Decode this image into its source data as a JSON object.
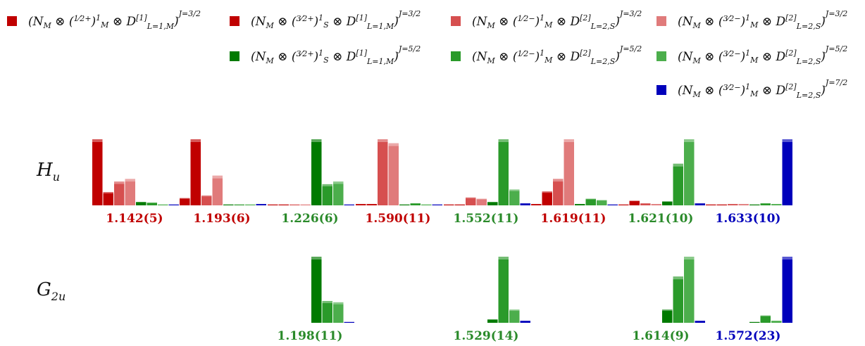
{
  "chart_data": {
    "type": "bar",
    "legend_placement": "top",
    "series": [
      {
        "key": "s1",
        "name": "(N_M ⊗ (1/2⁺)¹_M ⊗ D^[1]_{L=1,M})^{J=3/2}",
        "color": "#c00000"
      },
      {
        "key": "s2",
        "name": "(N_M ⊗ (3/2⁺)¹_S ⊗ D^[1]_{L=1,M})^{J=3/2}",
        "color": "#c00000"
      },
      {
        "key": "s3",
        "name": "(N_M ⊗ (1/2⁻)¹_M ⊗ D^[2]_{L=2,S})^{J=3/2}",
        "color": "#d64f4f"
      },
      {
        "key": "s4",
        "name": "(N_M ⊗ (3/2⁻)¹_M ⊗ D^[2]_{L=2,S})^{J=3/2}",
        "color": "#e07b7b"
      },
      {
        "key": "s5",
        "name": "(N_M ⊗ (3/2⁺)¹_S ⊗ D^[1]_{L=1,M})^{J=5/2}",
        "color": "#007a00"
      },
      {
        "key": "s6",
        "name": "(N_M ⊗ (1/2⁻)¹_M ⊗ D^[2]_{L=2,S})^{J=5/2}",
        "color": "#2a9a2a"
      },
      {
        "key": "s7",
        "name": "(N_M ⊗ (3/2⁻)¹_M ⊗ D^[2]_{L=2,S})^{J=5/2}",
        "color": "#4cae4c"
      },
      {
        "key": "s8",
        "name": "(N_M ⊗ (3/2⁻)¹_M ⊗ D^[2]_{L=2,S})^{J=7/2}",
        "color": "#0000bb"
      }
    ],
    "rows": [
      {
        "label_main": "H",
        "label_sub": "u",
        "groups": [
          {
            "mass": "1.142(5)",
            "mass_color": "#c00000",
            "values": [
              1.0,
              0.2,
              0.36,
              0.4,
              0.05,
              0.04,
              0.01,
              0.01
            ]
          },
          {
            "mass": "1.193(6)",
            "mass_color": "#c00000",
            "values": [
              0.11,
              1.0,
              0.15,
              0.45,
              0.01,
              0.01,
              0.01,
              0.02
            ]
          },
          {
            "mass": "1.226(6)",
            "mass_color": "#2a8a2a",
            "values": [
              0.01,
              0.01,
              0.01,
              0.01,
              1.0,
              0.32,
              0.36,
              0.01
            ]
          },
          {
            "mass": "1.590(11)",
            "mass_color": "#c00000",
            "values": [
              0.02,
              0.02,
              1.0,
              0.94,
              0.01,
              0.03,
              0.01,
              0.01
            ]
          },
          {
            "mass": "1.552(11)",
            "mass_color": "#2a8a2a",
            "values": [
              0.01,
              0.01,
              0.12,
              0.1,
              0.05,
              1.0,
              0.24,
              0.03
            ]
          },
          {
            "mass": "1.619(11)",
            "mass_color": "#c00000",
            "values": [
              0.02,
              0.21,
              0.4,
              1.0,
              0.02,
              0.1,
              0.08,
              0.01
            ]
          },
          {
            "mass": "1.621(10)",
            "mass_color": "#2a8a2a",
            "values": [
              0.01,
              0.07,
              0.03,
              0.02,
              0.06,
              0.63,
              1.0,
              0.03
            ]
          },
          {
            "mass": "1.633(10)",
            "mass_color": "#0000bb",
            "values": [
              0.01,
              0.01,
              0.02,
              0.02,
              0.01,
              0.03,
              0.02,
              1.0
            ]
          }
        ]
      },
      {
        "label_main": "G",
        "label_sub": "2u",
        "groups": [
          {
            "mass": "1.198(11)",
            "mass_color": "#2a8a2a",
            "values": [
              null,
              null,
              null,
              null,
              1.0,
              0.33,
              0.31,
              0.01
            ]
          },
          {
            "mass": "1.529(14)",
            "mass_color": "#2a8a2a",
            "values": [
              null,
              null,
              null,
              null,
              0.05,
              1.0,
              0.2,
              0.03
            ]
          },
          {
            "mass": "1.614(9)",
            "mass_color": "#2a8a2a",
            "values": [
              null,
              null,
              null,
              null,
              0.2,
              0.7,
              1.0,
              0.03
            ]
          },
          {
            "mass": "1.572(23)",
            "mass_color": "#0000bb",
            "values": [
              null,
              null,
              null,
              null,
              0.01,
              0.11,
              0.03,
              1.0
            ]
          }
        ]
      }
    ]
  }
}
